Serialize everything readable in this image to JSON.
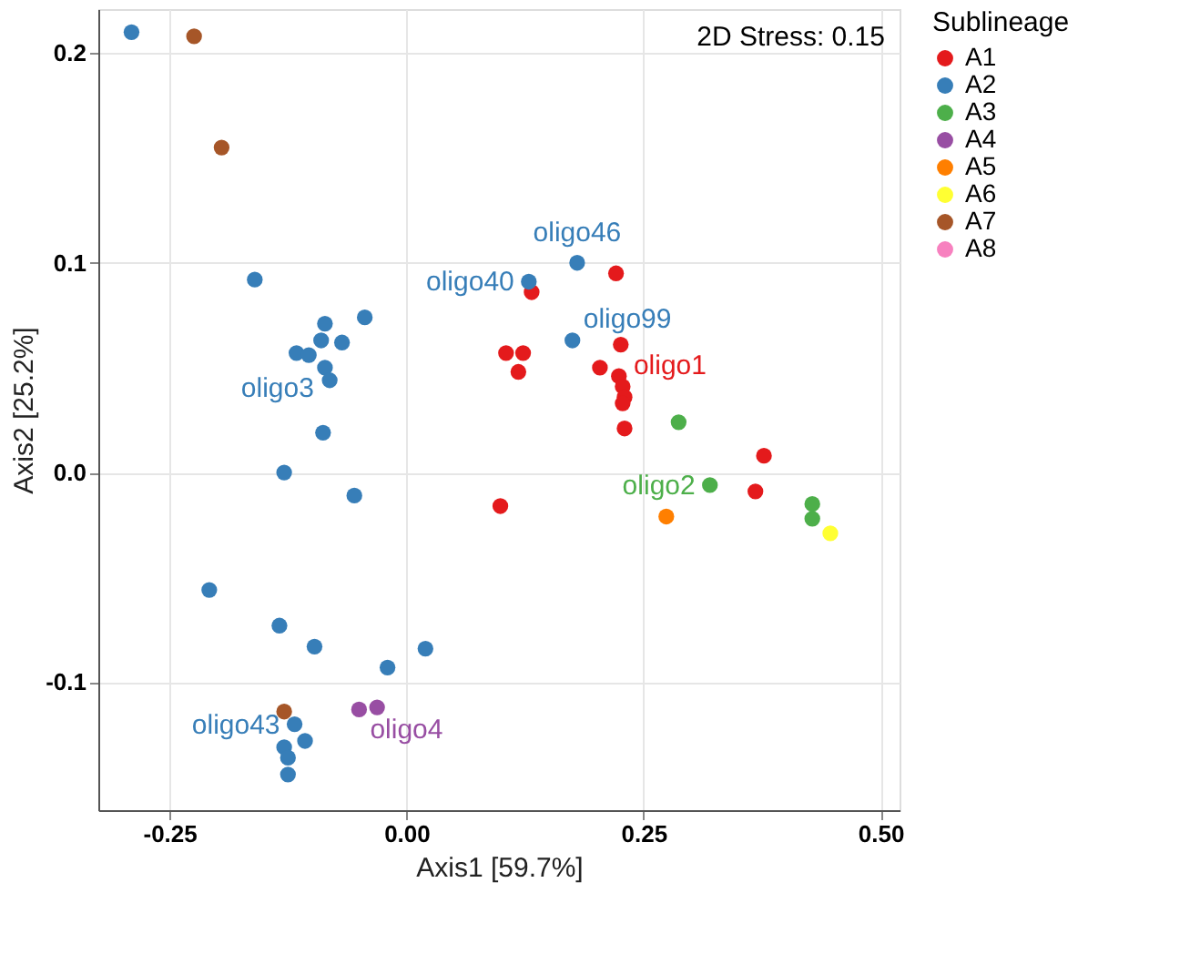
{
  "chart_data": {
    "type": "scatter",
    "xlabel": "Axis1 [59.7%]",
    "ylabel": "Axis2  [25.2%]",
    "legend_title": "Sublineage",
    "xlim": [
      -0.325,
      0.52
    ],
    "ylim": [
      -0.161,
      0.221
    ],
    "xticks": [
      {
        "value": -0.25,
        "label": "-0.25"
      },
      {
        "value": 0,
        "label": "0.00"
      },
      {
        "value": 0.25,
        "label": "0.25"
      },
      {
        "value": 0.5,
        "label": "0.50"
      }
    ],
    "yticks": [
      {
        "value": -0.1,
        "label": "-0.1"
      },
      {
        "value": 0,
        "label": "0.0"
      },
      {
        "value": 0.1,
        "label": "0.1"
      },
      {
        "value": 0.2,
        "label": "0.2"
      }
    ],
    "grid": true,
    "legend": "right",
    "marker": "circle",
    "series": [
      {
        "name": "A1",
        "color": "#e41a1c",
        "x": [
          0.221,
          0.132,
          0.226,
          0.105,
          0.123,
          0.118,
          0.204,
          0.224,
          0.228,
          0.23,
          0.228,
          0.23,
          0.377,
          0.099,
          0.368
        ],
        "values": [
          0.095,
          0.086,
          0.061,
          0.057,
          0.057,
          0.048,
          0.05,
          0.046,
          0.041,
          0.036,
          0.033,
          0.021,
          0.008,
          -0.016,
          -0.009
        ]
      },
      {
        "name": "A2",
        "color": "#377eb8",
        "x": [
          -0.29,
          -0.16,
          -0.086,
          -0.044,
          -0.09,
          -0.068,
          -0.116,
          -0.103,
          -0.086,
          -0.081,
          -0.088,
          -0.129,
          -0.055,
          -0.208,
          -0.134,
          -0.097,
          0.02,
          -0.02,
          -0.118,
          -0.107,
          -0.129,
          -0.125,
          -0.125,
          0.18,
          0.129,
          0.175
        ],
        "values": [
          0.21,
          0.092,
          0.071,
          0.074,
          0.063,
          0.062,
          0.057,
          0.056,
          0.05,
          0.044,
          0.019,
          0.0,
          -0.011,
          -0.056,
          -0.073,
          -0.083,
          -0.084,
          -0.093,
          -0.12,
          -0.128,
          -0.131,
          -0.136,
          -0.144,
          0.1,
          0.091,
          0.063
        ]
      },
      {
        "name": "A3",
        "color": "#4daf4a",
        "x": [
          0.287,
          0.32,
          0.428,
          0.428
        ],
        "values": [
          0.024,
          -0.006,
          -0.015,
          -0.022
        ]
      },
      {
        "name": "A4",
        "color": "#984ea3",
        "x": [
          -0.05,
          -0.031
        ],
        "values": [
          -0.113,
          -0.112
        ]
      },
      {
        "name": "A5",
        "color": "#ff7f00",
        "x": [
          0.274
        ],
        "values": [
          -0.021
        ]
      },
      {
        "name": "A6",
        "color": "#ffff33",
        "x": [
          0.447
        ],
        "values": [
          -0.029
        ]
      },
      {
        "name": "A7",
        "color": "#a65628",
        "x": [
          -0.224,
          -0.195,
          -0.129
        ],
        "values": [
          0.208,
          0.155,
          -0.114
        ]
      },
      {
        "name": "A8",
        "color": "#f781bf"
      }
    ],
    "annotations": [
      "2D Stress: 0.15",
      {
        "text": "oligo46",
        "x": 0.18,
        "y": 0.1
      },
      {
        "text": "oligo40",
        "x": 0.129,
        "y": 0.091
      },
      {
        "text": "oligo99",
        "x": 0.175,
        "y": 0.063
      },
      {
        "text": "oligo3",
        "x": -0.086,
        "y": 0.05
      },
      {
        "text": "oligo1",
        "x": 0.228,
        "y": 0.041
      },
      {
        "text": "oligo2",
        "x": 0.32,
        "y": -0.006
      },
      {
        "text": "oligo4",
        "x": -0.05,
        "y": -0.113
      },
      {
        "text": "oligo43",
        "x": -0.118,
        "y": -0.12
      }
    ]
  }
}
